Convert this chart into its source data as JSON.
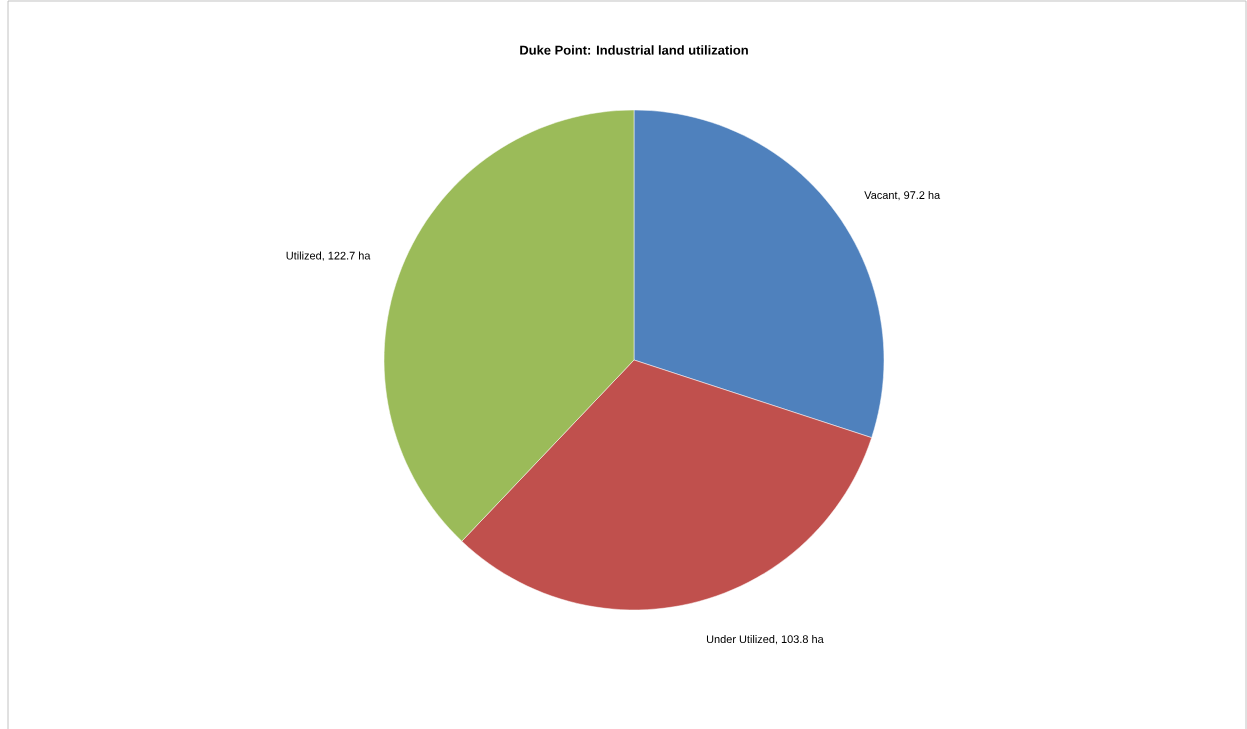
{
  "chart_data": {
    "type": "pie",
    "title": "Duke Point: Industrial land utilization",
    "categories": [
      "Vacant",
      "Under Utilized",
      "Utilized"
    ],
    "values": [
      97.2,
      103.8,
      122.7
    ],
    "colors": [
      "#4f81bd",
      "#c0504d",
      "#9bbb59"
    ],
    "value_labels": [
      ", 97.2 ha",
      ", 103.8 ha",
      ", 122.7 ha"
    ]
  }
}
